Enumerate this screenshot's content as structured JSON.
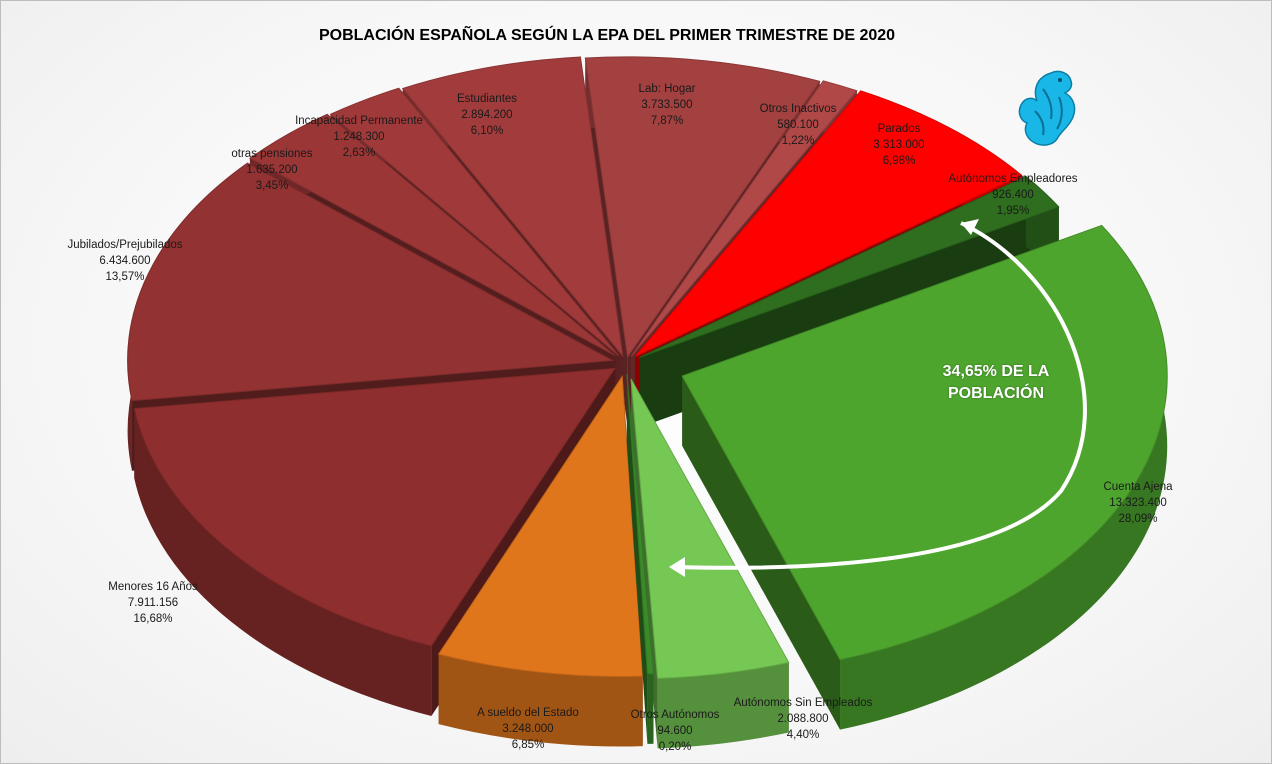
{
  "chart_data": {
    "type": "pie",
    "title": "POBLACIÓN ESPAÑOLA SEGÚN LA EPA DEL PRIMER TRIMESTRE DE 2020",
    "slices": [
      {
        "name": "Lab: Hogar",
        "value": "3.733.500",
        "pct": "7,87%",
        "color": "#a34040"
      },
      {
        "name": "Otros Inactivos",
        "value": "580.100",
        "pct": "1,22%",
        "color": "#b04848"
      },
      {
        "name": "Parados",
        "value": "3.313.000",
        "pct": "6,98%",
        "color": "#ff0000"
      },
      {
        "name": "Autónomos Empleadores",
        "value": "926.400",
        "pct": "1,95%",
        "color": "#2e6e1e"
      },
      {
        "name": "Cuenta Ajena",
        "value": "13.323.400",
        "pct": "28,09%",
        "color": "#4ea52e"
      },
      {
        "name": "Autónomos Sin Empleados",
        "value": "2.088.800",
        "pct": "4,40%",
        "color": "#76c854"
      },
      {
        "name": "Otros Autónomos",
        "value": "94.600",
        "pct": "0,20%",
        "color": "#3b8a2a"
      },
      {
        "name": "A sueldo del Estado",
        "value": "3.248.000",
        "pct": "6,85%",
        "color": "#e0761c"
      },
      {
        "name": "Menores 16 Años",
        "value": "7.911.156",
        "pct": "16,68%",
        "color": "#8e2e2e"
      },
      {
        "name": "Jubilados/Prejubilados",
        "value": "6.434.600",
        "pct": "13,57%",
        "color": "#923232"
      },
      {
        "name": "otras pensiones",
        "value": "1.635.200",
        "pct": "3,45%",
        "color": "#9a3636"
      },
      {
        "name": "Incapacidad Permanente",
        "value": "1.248.300",
        "pct": "2,63%",
        "color": "#a03a3a"
      },
      {
        "name": "Estudiantes",
        "value": "2.894.200",
        "pct": "6,10%",
        "color": "#a23c3c"
      }
    ],
    "callout": {
      "line1": "34,65% DE LA",
      "line2": "POBLACIÓN"
    }
  }
}
